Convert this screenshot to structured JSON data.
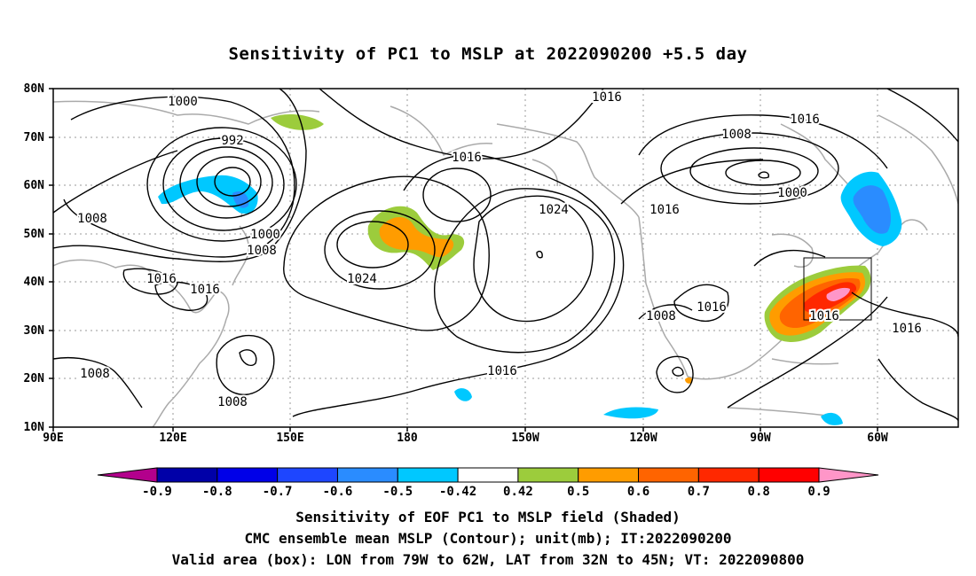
{
  "title": "Sensitivity of PC1 to MSLP at 2022090200 +5.5 day",
  "map": {
    "lat_labels": [
      "80N",
      "70N",
      "60N",
      "50N",
      "40N",
      "30N",
      "20N",
      "10N"
    ],
    "lon_labels": [
      "90E",
      "120E",
      "150E",
      "180",
      "150W",
      "120W",
      "90W",
      "60W"
    ],
    "contour_labels": [
      {
        "id": "c1",
        "text": "1000"
      },
      {
        "id": "c2",
        "text": "992"
      },
      {
        "id": "c3",
        "text": "1008"
      },
      {
        "id": "c4",
        "text": "1000"
      },
      {
        "id": "c5",
        "text": "1008"
      },
      {
        "id": "c6",
        "text": "1016"
      },
      {
        "id": "c7",
        "text": "1016"
      },
      {
        "id": "c8",
        "text": "1008"
      },
      {
        "id": "c9",
        "text": "1008"
      },
      {
        "id": "c10",
        "text": "1016"
      },
      {
        "id": "c11",
        "text": "1024"
      },
      {
        "id": "c12",
        "text": "1016"
      },
      {
        "id": "c13",
        "text": "1024"
      },
      {
        "id": "c14",
        "text": "1016"
      },
      {
        "id": "c15",
        "text": "1016"
      },
      {
        "id": "c16",
        "text": "1008"
      },
      {
        "id": "c17",
        "text": "1000"
      },
      {
        "id": "c18",
        "text": "1016"
      },
      {
        "id": "c19",
        "text": "1008"
      },
      {
        "id": "c20",
        "text": "1016"
      },
      {
        "id": "c21",
        "text": "1016"
      },
      {
        "id": "c22",
        "text": "1016"
      }
    ],
    "valid_box": {
      "lon_from": "79W",
      "lon_to": "62W",
      "lat_from": "32N",
      "lat_to": "45N"
    }
  },
  "colorbar": {
    "labels": [
      "-0.9",
      "-0.8",
      "-0.7",
      "-0.6",
      "-0.5",
      "-0.42",
      "0.42",
      "0.5",
      "0.6",
      "0.7",
      "0.8",
      "0.9"
    ],
    "colors": [
      "#b3008c",
      "#0000a8",
      "#0000e8",
      "#1e46ff",
      "#2a8cff",
      "#00c8ff",
      "#ffffff",
      "#9ccc3c",
      "#ff9c00",
      "#ff6400",
      "#ff2800",
      "#ff0000",
      "#ff96c8"
    ]
  },
  "captions": {
    "line1": "Sensitivity of EOF PC1 to MSLP field (Shaded)",
    "line2": "CMC ensemble mean MSLP (Contour); unit(mb); IT:2022090200",
    "line3": "Valid area (box): LON from 79W to 62W, LAT from 32N to 45N; VT: 2022090800"
  }
}
